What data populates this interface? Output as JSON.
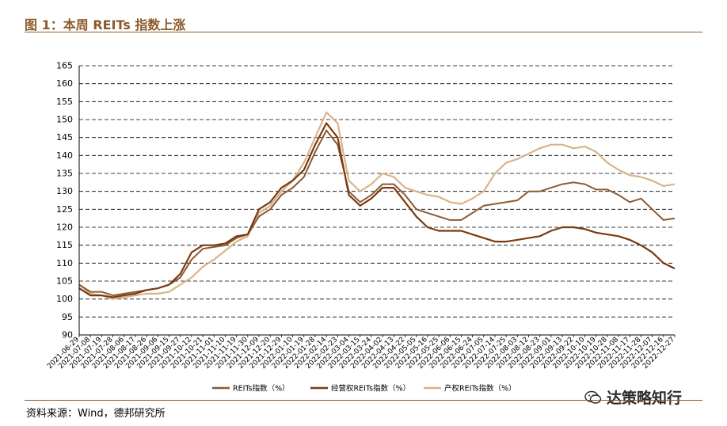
{
  "header": {
    "title": "图 1：本周 REITs 指数上涨"
  },
  "footer": {
    "source": "资料来源：Wind，德邦研究所"
  },
  "watermark": {
    "text": "达策略知行",
    "icon": "wechat-icon"
  },
  "colors": {
    "accent": "#8a5a2b",
    "reits": "#8b5a32",
    "operating": "#7a3a10",
    "property": "#d9b38c"
  },
  "chart_data": {
    "type": "line",
    "ylim": [
      90,
      165
    ],
    "ytick_labels": [
      "90",
      "95",
      "100",
      "105",
      "110",
      "115",
      "120",
      "125",
      "130",
      "135",
      "140",
      "145",
      "150",
      "155",
      "160",
      "165"
    ],
    "grid": "horizontal dashed",
    "legend_position": "bottom",
    "x": [
      "2021-06-29",
      "2021-07-08",
      "2021-07-19",
      "2021-07-28",
      "2021-08-06",
      "2021-08-17",
      "2021-08-26",
      "2021-09-06",
      "2021-09-15",
      "2021-09-27",
      "2021-10-12",
      "2021-10-21",
      "2021-11-01",
      "2021-11-10",
      "2021-11-19",
      "2021-11-30",
      "2021-12-09",
      "2021-12-20",
      "2021-12-29",
      "2022-01-10",
      "2022-01-19",
      "2022-01-28",
      "2022-02-14",
      "2022-02-23",
      "2022-03-04",
      "2022-03-15",
      "2022-03-24",
      "2022-04-02",
      "2022-04-13",
      "2022-04-22",
      "2022-05-05",
      "2022-05-16",
      "2022-05-25",
      "2022-06-06",
      "2022-06-15",
      "2022-06-24",
      "2022-07-05",
      "2022-07-14",
      "2022-07-25",
      "2022-08-03",
      "2022-08-12",
      "2022-08-23",
      "2022-09-01",
      "2022-09-13",
      "2022-09-22",
      "2022-10-10",
      "2022-10-19",
      "2022-10-28",
      "2022-11-08",
      "2022-11-17",
      "2022-11-28",
      "2022-12-07",
      "2022-12-16",
      "2022-12-27"
    ],
    "series": [
      {
        "name": "REITs指数（%）",
        "values": [
          104,
          102,
          102,
          101,
          101.5,
          102,
          102.5,
          103,
          104,
          106,
          111,
          114,
          114.5,
          115,
          117,
          118,
          123,
          125,
          129,
          131,
          134,
          141,
          147,
          143,
          130,
          127,
          129,
          132,
          132,
          129,
          125,
          124,
          123,
          122,
          122,
          124,
          126,
          126.5,
          127,
          127.5,
          130,
          130,
          131,
          132,
          132.5,
          132,
          130.5,
          130.5,
          129,
          127,
          128,
          125,
          122,
          122.5
        ]
      },
      {
        "name": "经营权REITs指数（%）",
        "values": [
          103,
          101,
          101,
          100.5,
          101,
          101.5,
          102.5,
          103,
          104,
          107,
          113,
          115,
          115,
          115.5,
          117.5,
          118,
          125,
          127,
          131,
          133,
          136,
          143,
          149,
          145,
          129,
          126,
          128,
          131,
          131,
          127,
          123,
          120,
          119,
          119,
          119,
          118,
          117,
          116,
          116,
          116.5,
          117,
          117.5,
          119,
          120,
          120,
          119.5,
          118.5,
          118,
          117.5,
          116.5,
          115,
          113,
          110,
          108.5
        ]
      },
      {
        "name": "产权REITs指数（%）",
        "values": [
          104,
          101.5,
          101,
          100,
          100.5,
          101,
          101.5,
          101.5,
          102,
          104,
          106,
          109,
          111,
          113.5,
          116,
          117.5,
          124,
          126,
          130,
          133,
          138,
          145,
          152,
          149,
          133,
          130,
          132,
          135,
          134,
          131,
          130,
          129,
          128.5,
          127,
          126.5,
          128,
          130,
          135,
          138,
          139,
          140.5,
          142,
          143,
          143,
          142,
          142.5,
          141,
          138,
          136,
          134.5,
          134,
          133,
          131.5,
          132
        ]
      }
    ]
  }
}
